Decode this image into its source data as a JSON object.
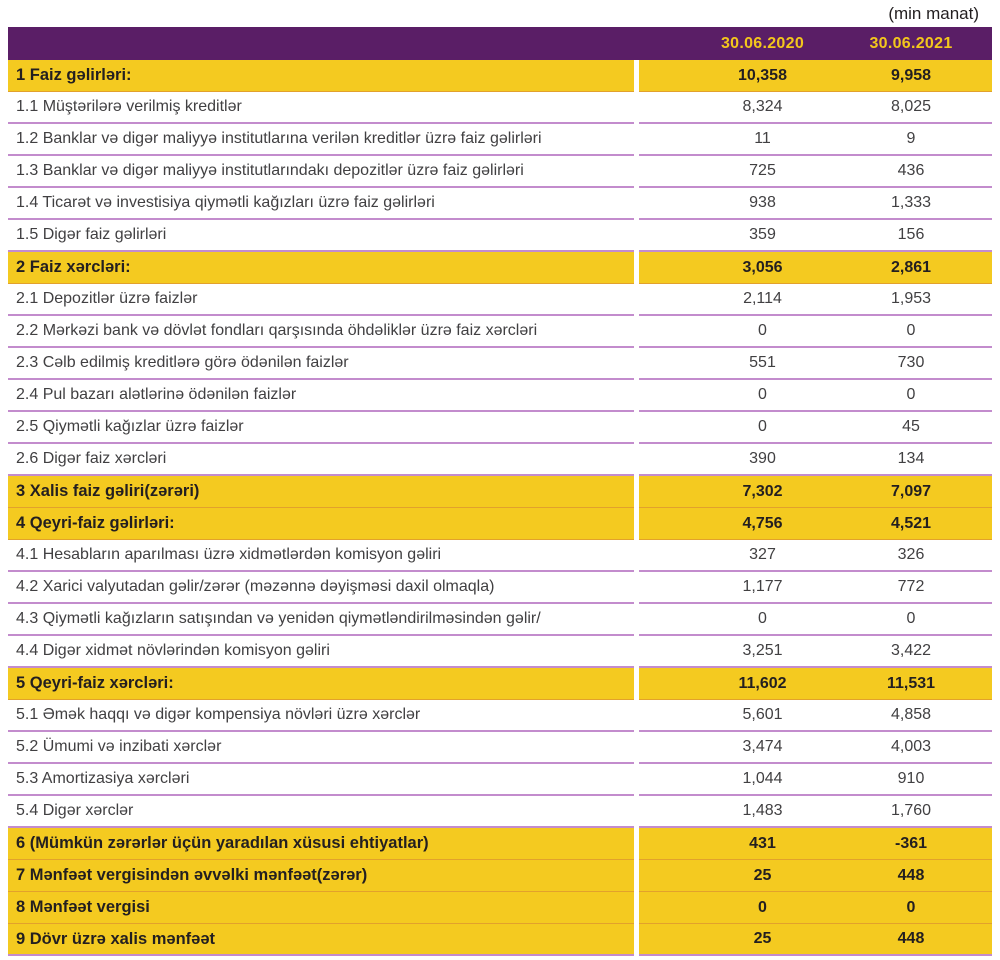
{
  "note": "(min manat)",
  "colors": {
    "header_bg": "#5A1E66",
    "header_text": "#F3C71C",
    "section_bg": "#F4CA20",
    "line_item": "#C38CCD",
    "line_section": "#E2A12C",
    "item_text": "#414042",
    "section_text": "#231F20"
  },
  "table": {
    "columns": [
      "30.06.2020",
      "30.06.2021"
    ],
    "rows": [
      {
        "label": "1 Faiz gəlirləri:",
        "type": "section",
        "values": [
          "10,358",
          "9,958"
        ]
      },
      {
        "label": "1.1 Müştərilərə verilmiş kreditlər",
        "type": "item",
        "values": [
          "8,324",
          "8,025"
        ]
      },
      {
        "label": "1.2 Banklar və digər maliyyə institutlarına verilən kreditlər üzrə faiz gəlirləri",
        "type": "item",
        "values": [
          "11",
          "9"
        ]
      },
      {
        "label": "1.3 Banklar və digər maliyyə institutlarındakı depozitlər üzrə faiz gəlirləri",
        "type": "item",
        "values": [
          "725",
          "436"
        ]
      },
      {
        "label": "1.4 Ticarət və investisiya qiymətli kağızları üzrə faiz gəlirləri",
        "type": "item",
        "values": [
          "938",
          "1,333"
        ]
      },
      {
        "label": "1.5 Digər faiz gəlirləri",
        "type": "item",
        "values": [
          "359",
          "156"
        ]
      },
      {
        "label": "2 Faiz xərcləri:",
        "type": "section",
        "values": [
          "3,056",
          "2,861"
        ]
      },
      {
        "label": "2.1 Depozitlər üzrə faizlər",
        "type": "item",
        "values": [
          "2,114",
          "1,953"
        ]
      },
      {
        "label": "2.2 Mərkəzi bank və dövlət fondları qarşısında öhdəliklər üzrə faiz xərcləri",
        "type": "item",
        "values": [
          "0",
          "0"
        ]
      },
      {
        "label": "2.3 Cəlb edilmiş kreditlərə görə ödənilən faizlər",
        "type": "item",
        "values": [
          "551",
          "730"
        ]
      },
      {
        "label": "2.4 Pul bazarı alətlərinə ödənilən faizlər",
        "type": "item",
        "values": [
          "0",
          "0"
        ]
      },
      {
        "label": "2.5 Qiymətli kağızlar üzrə faizlər",
        "type": "item",
        "values": [
          "0",
          "45"
        ]
      },
      {
        "label": "2.6 Digər faiz xərcləri",
        "type": "item",
        "values": [
          "390",
          "134"
        ]
      },
      {
        "label": "3 Xalis faiz gəliri(zərəri)",
        "type": "section",
        "values": [
          "7,302",
          "7,097"
        ]
      },
      {
        "label": "4 Qeyri-faiz gəlirləri:",
        "type": "section",
        "values": [
          "4,756",
          "4,521"
        ]
      },
      {
        "label": "4.1 Hesabların aparılması üzrə xidmətlərdən komisyon gəliri",
        "type": "item",
        "values": [
          "327",
          "326"
        ]
      },
      {
        "label": "4.2 Xarici valyutadan gəlir/zərər (məzənnə dəyişməsi daxil olmaqla)",
        "type": "item",
        "values": [
          "1,177",
          "772"
        ]
      },
      {
        "label": "4.3 Qiymətli kağızların satışından və yenidən qiymətləndirilməsindən gəlir/",
        "type": "item",
        "values": [
          "0",
          "0"
        ]
      },
      {
        "label": "4.4 Digər xidmət növlərindən komisyon gəliri",
        "type": "item",
        "values": [
          "3,251",
          "3,422"
        ]
      },
      {
        "label": "5 Qeyri-faiz xərcləri:",
        "type": "section",
        "values": [
          "11,602",
          "11,531"
        ]
      },
      {
        "label": "5.1 Əmək haqqı və digər kompensiya növləri üzrə xərclər",
        "type": "item",
        "values": [
          "5,601",
          "4,858"
        ]
      },
      {
        "label": "5.2 Ümumi və inzibati xərclər",
        "type": "item",
        "values": [
          "3,474",
          "4,003"
        ]
      },
      {
        "label": "5.3 Amortizasiya xərcləri",
        "type": "item",
        "values": [
          "1,044",
          "910"
        ]
      },
      {
        "label": "5.4 Digər xərclər",
        "type": "item",
        "values": [
          "1,483",
          "1,760"
        ]
      },
      {
        "label": "6 (Mümkün zərərlər üçün yaradılan xüsusi ehtiyatlar)",
        "type": "section",
        "values": [
          "431",
          "-361"
        ]
      },
      {
        "label": "7 Mənfəət vergisindən əvvəlki mənfəət(zərər)",
        "type": "section",
        "values": [
          "25",
          "448"
        ]
      },
      {
        "label": "8 Mənfəət vergisi",
        "type": "section",
        "values": [
          "0",
          "0"
        ]
      },
      {
        "label": "9 Dövr üzrə xalis mənfəət",
        "type": "section",
        "values": [
          "25",
          "448"
        ]
      }
    ]
  }
}
